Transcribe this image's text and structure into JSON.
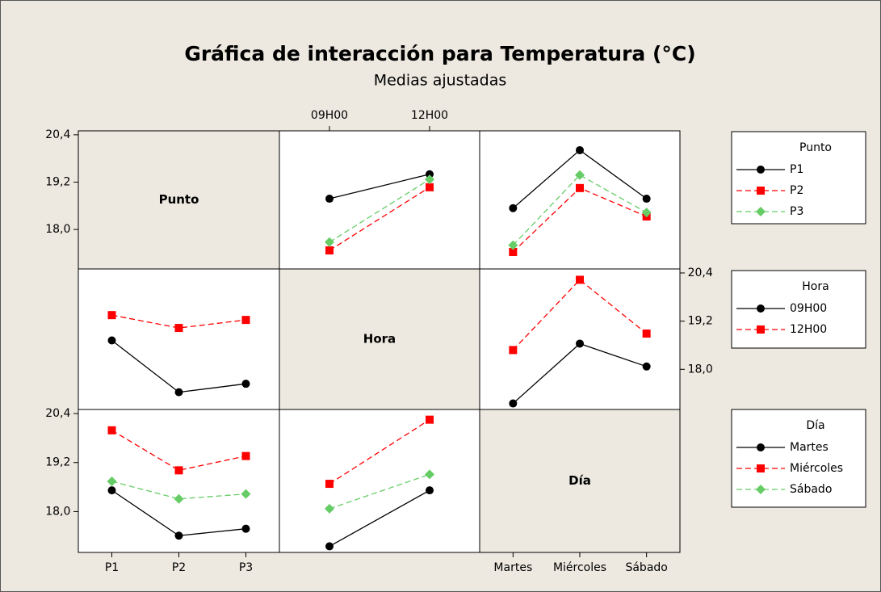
{
  "title": "Gráfica de interacción para Temperatura (°C)",
  "subtitle": "Medias ajustadas",
  "factors": [
    "Punto",
    "Hora",
    "Día"
  ],
  "chart_data": [
    {
      "type": "line",
      "categories": [
        "09H00",
        "12H00"
      ],
      "ylim": [
        17,
        20.5
      ],
      "yticks": [
        {
          "value": 18,
          "label": "18,0"
        },
        {
          "value": 19.2,
          "label": "19,2"
        },
        {
          "value": 20.4,
          "label": "20,4"
        }
      ],
      "series": [
        {
          "name": "P1",
          "color": "#000000",
          "marker": "circle",
          "dashed": false,
          "values": [
            18.78,
            19.4
          ]
        },
        {
          "name": "P2",
          "color": "#ff0000",
          "marker": "square",
          "dashed": true,
          "values": [
            17.47,
            19.07
          ]
        },
        {
          "name": "P3",
          "color": "#66cc66",
          "marker": "diamond",
          "dashed": true,
          "values": [
            17.68,
            19.27
          ]
        }
      ]
    },
    {
      "type": "line",
      "series": [
        {
          "values": [
            18.54,
            20.01,
            18.78
          ]
        },
        {
          "values": [
            17.43,
            19.05,
            18.33
          ]
        },
        {
          "values": [
            17.6,
            19.38,
            18.43
          ]
        }
      ]
    },
    {
      "type": "line",
      "series": [
        {
          "name": "09H00",
          "color": "#000000",
          "marker": "circle",
          "dashed": false,
          "values": [
            18.72,
            17.43,
            17.64
          ]
        },
        {
          "name": "12H00",
          "color": "#ff0000",
          "marker": "square",
          "dashed": true,
          "values": [
            19.35,
            19.03,
            19.23
          ]
        }
      ]
    },
    {
      "type": "line",
      "categories": [
        "Martes",
        "Miércoles",
        "Sábado"
      ],
      "ylim": [
        17,
        20.5
      ],
      "yticks": [
        {
          "value": 18,
          "label": "18,0"
        },
        {
          "value": 19.2,
          "label": "19,2"
        },
        {
          "value": 20.4,
          "label": "20,4"
        }
      ],
      "series": [
        {
          "values": [
            17.15,
            18.64,
            18.07
          ]
        },
        {
          "values": [
            18.48,
            20.23,
            18.89
          ]
        }
      ]
    },
    {
      "type": "line",
      "categories": [
        "P1",
        "P2",
        "P3"
      ],
      "ylim": [
        17,
        20.5
      ],
      "yticks": [
        {
          "value": 18,
          "label": "18,0"
        },
        {
          "value": 19.2,
          "label": "19,2"
        },
        {
          "value": 20.4,
          "label": "20,4"
        }
      ],
      "series": [
        {
          "name": "Martes",
          "color": "#000000",
          "marker": "circle",
          "dashed": false,
          "values": [
            18.52,
            17.41,
            17.58
          ]
        },
        {
          "name": "Miércoles",
          "color": "#ff0000",
          "marker": "square",
          "dashed": true,
          "values": [
            19.99,
            19.01,
            19.36
          ]
        },
        {
          "name": "Sábado",
          "color": "#66cc66",
          "marker": "diamond",
          "dashed": true,
          "values": [
            18.74,
            18.31,
            18.43
          ]
        }
      ]
    },
    {
      "type": "line",
      "series": [
        {
          "values": [
            17.15,
            18.52
          ]
        },
        {
          "values": [
            18.68,
            20.25
          ]
        },
        {
          "values": [
            18.07,
            18.91
          ]
        }
      ]
    }
  ]
}
